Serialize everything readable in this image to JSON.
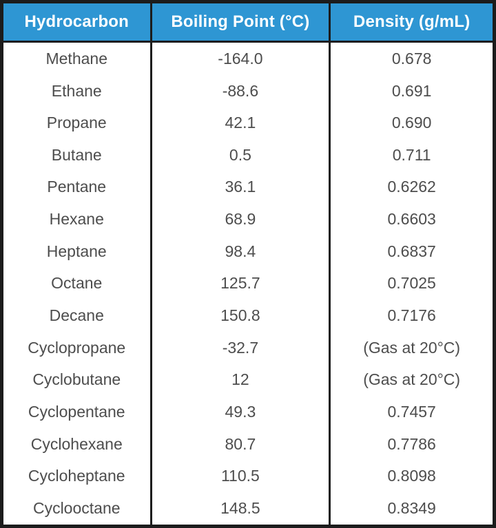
{
  "chart_data": {
    "type": "table",
    "columns": [
      "Hydrocarbon",
      "Boiling Point (°C)",
      "Density (g/mL)"
    ],
    "rows": [
      [
        "Methane",
        "-164.0",
        "0.678"
      ],
      [
        "Ethane",
        "-88.6",
        "0.691"
      ],
      [
        "Propane",
        "42.1",
        "0.690"
      ],
      [
        "Butane",
        "0.5",
        "0.711"
      ],
      [
        "Pentane",
        "36.1",
        "0.6262"
      ],
      [
        "Hexane",
        "68.9",
        "0.6603"
      ],
      [
        "Heptane",
        "98.4",
        "0.6837"
      ],
      [
        "Octane",
        "125.7",
        "0.7025"
      ],
      [
        "Decane",
        "150.8",
        "0.7176"
      ],
      [
        "Cyclopropane",
        "-32.7",
        "(Gas at 20°C)"
      ],
      [
        "Cyclobutane",
        "12",
        "(Gas at 20°C)"
      ],
      [
        "Cyclopentane",
        "49.3",
        "0.7457"
      ],
      [
        "Cyclohexane",
        "80.7",
        "0.7786"
      ],
      [
        "Cycloheptane",
        "110.5",
        "0.8098"
      ],
      [
        "Cyclooctane",
        "148.5",
        "0.8349"
      ]
    ],
    "layout": {
      "grid": "vertical-only",
      "legend": "none"
    },
    "colors": {
      "header_bg": "#2E96D3",
      "header_text": "#FFFFFF",
      "body_text": "#4D4D4D",
      "border": "#1C1C1C",
      "background": "#FFFFFF"
    }
  }
}
